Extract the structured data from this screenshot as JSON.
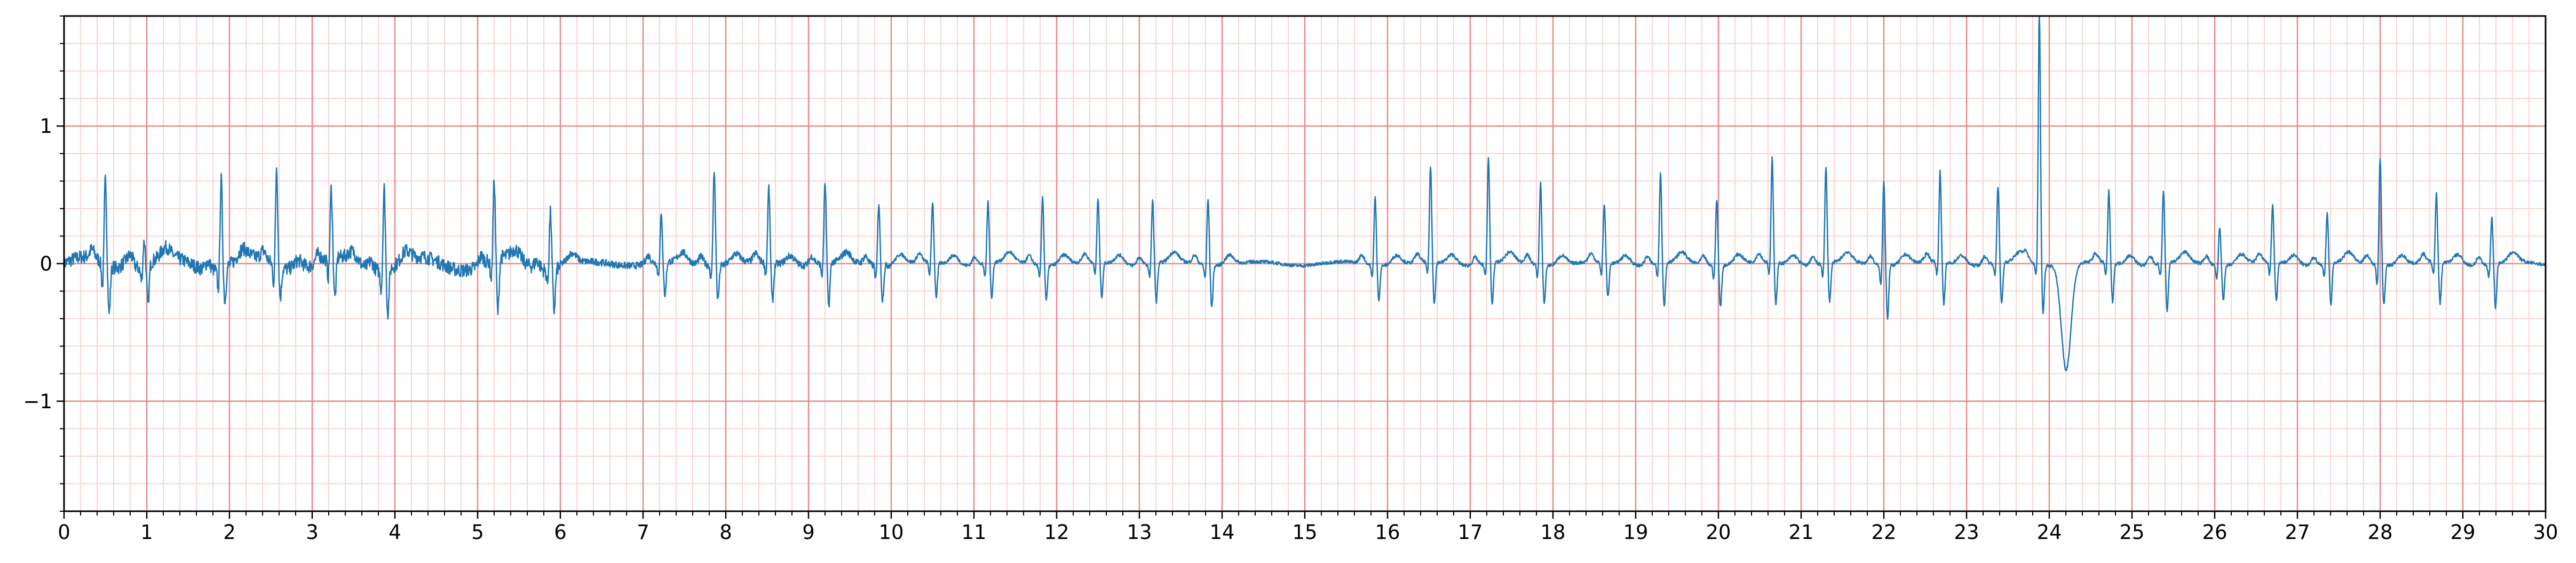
{
  "chart_data": {
    "type": "line",
    "title": "",
    "xlabel": "",
    "ylabel": "",
    "xlim": [
      0,
      30
    ],
    "ylim": [
      -1.8,
      1.8
    ],
    "x_ticks": [
      0,
      1,
      2,
      3,
      4,
      5,
      6,
      7,
      8,
      9,
      10,
      11,
      12,
      13,
      14,
      15,
      16,
      17,
      18,
      19,
      20,
      21,
      22,
      23,
      24,
      25,
      26,
      27,
      28,
      29,
      30
    ],
    "x_tick_labels": [
      "0",
      "1",
      "2",
      "3",
      "4",
      "5",
      "6",
      "7",
      "8",
      "9",
      "10",
      "11",
      "12",
      "13",
      "14",
      "15",
      "16",
      "17",
      "18",
      "19",
      "20",
      "21",
      "22",
      "23",
      "24",
      "25",
      "26",
      "27",
      "28",
      "29",
      "30"
    ],
    "y_ticks": [
      -1,
      0,
      1
    ],
    "y_tick_labels": [
      "−1",
      "0",
      "1"
    ],
    "grid": {
      "major": true,
      "minor": true,
      "major_color": "#e88a8a",
      "minor_color": "#f9d4d4",
      "minor_step_x": 0.2,
      "minor_step_y": 0.2
    },
    "background": "#ffffff",
    "series": [
      {
        "color": "#1f77b4",
        "beats": [
          {
            "t": 0.5,
            "r": 0.62,
            "q": -0.2,
            "s": -0.35
          },
          {
            "t": 0.97,
            "r": 0.18,
            "q": -0.1,
            "s": -0.3
          },
          {
            "t": 1.9,
            "r": 0.65,
            "q": -0.15,
            "s": -0.25
          },
          {
            "t": 2.57,
            "r": 0.72,
            "q": -0.15,
            "s": -0.22
          },
          {
            "t": 3.23,
            "r": 0.5,
            "q": -0.15,
            "s": -0.3
          },
          {
            "t": 3.87,
            "r": 0.6,
            "q": -0.15,
            "s": -0.32
          },
          {
            "t": 5.2,
            "r": 0.57,
            "q": -0.15,
            "s": -0.4
          },
          {
            "t": 5.88,
            "r": 0.42,
            "q": -0.1,
            "s": -0.3
          },
          {
            "t": 7.22,
            "r": 0.34,
            "q": -0.1,
            "s": -0.25
          },
          {
            "t": 7.86,
            "r": 0.7,
            "q": -0.1,
            "s": -0.25
          },
          {
            "t": 8.52,
            "r": 0.55,
            "q": -0.1,
            "s": -0.28
          },
          {
            "t": 9.2,
            "r": 0.58,
            "q": -0.1,
            "s": -0.32
          },
          {
            "t": 9.85,
            "r": 0.46,
            "q": -0.1,
            "s": -0.25
          },
          {
            "t": 10.5,
            "r": 0.44,
            "q": -0.1,
            "s": -0.25
          },
          {
            "t": 11.17,
            "r": 0.46,
            "q": -0.1,
            "s": -0.25
          },
          {
            "t": 11.83,
            "r": 0.5,
            "q": -0.1,
            "s": -0.25
          },
          {
            "t": 12.5,
            "r": 0.46,
            "q": -0.1,
            "s": -0.25
          },
          {
            "t": 13.16,
            "r": 0.46,
            "q": -0.1,
            "s": -0.28
          },
          {
            "t": 13.83,
            "r": 0.48,
            "q": -0.1,
            "s": -0.3
          },
          {
            "t": 15.85,
            "r": 0.5,
            "q": -0.1,
            "s": -0.25
          },
          {
            "t": 16.52,
            "r": 0.7,
            "q": -0.1,
            "s": -0.3
          },
          {
            "t": 17.22,
            "r": 0.77,
            "q": -0.1,
            "s": -0.3
          },
          {
            "t": 17.85,
            "r": 0.6,
            "q": -0.1,
            "s": -0.28
          },
          {
            "t": 18.62,
            "r": 0.42,
            "q": -0.1,
            "s": -0.25
          },
          {
            "t": 19.3,
            "r": 0.66,
            "q": -0.1,
            "s": -0.32
          },
          {
            "t": 19.98,
            "r": 0.48,
            "q": -0.1,
            "s": -0.3
          },
          {
            "t": 20.65,
            "r": 0.76,
            "q": -0.1,
            "s": -0.3
          },
          {
            "t": 21.3,
            "r": 0.7,
            "q": -0.1,
            "s": -0.28
          },
          {
            "t": 22.0,
            "r": 0.62,
            "q": -0.15,
            "s": -0.38
          },
          {
            "t": 22.68,
            "r": 0.66,
            "q": -0.1,
            "s": -0.3
          },
          {
            "t": 23.38,
            "r": 0.56,
            "q": -0.1,
            "s": -0.3
          },
          {
            "t": 23.88,
            "r": 1.85,
            "q": -0.1,
            "s": -0.35
          },
          {
            "t": 24.72,
            "r": 0.52,
            "q": -0.1,
            "s": -0.28
          },
          {
            "t": 25.38,
            "r": 0.52,
            "q": -0.1,
            "s": -0.35
          },
          {
            "t": 26.06,
            "r": 0.28,
            "q": -0.1,
            "s": -0.25
          },
          {
            "t": 26.7,
            "r": 0.41,
            "q": -0.1,
            "s": -0.28
          },
          {
            "t": 27.36,
            "r": 0.37,
            "q": -0.1,
            "s": -0.3
          },
          {
            "t": 28.0,
            "r": 0.78,
            "q": -0.15,
            "s": -0.28
          },
          {
            "t": 28.68,
            "r": 0.5,
            "q": -0.1,
            "s": -0.3
          },
          {
            "t": 29.35,
            "r": 0.34,
            "q": -0.1,
            "s": -0.32
          }
        ],
        "deflection": {
          "t": 24.2,
          "min": -0.8
        }
      }
    ]
  }
}
